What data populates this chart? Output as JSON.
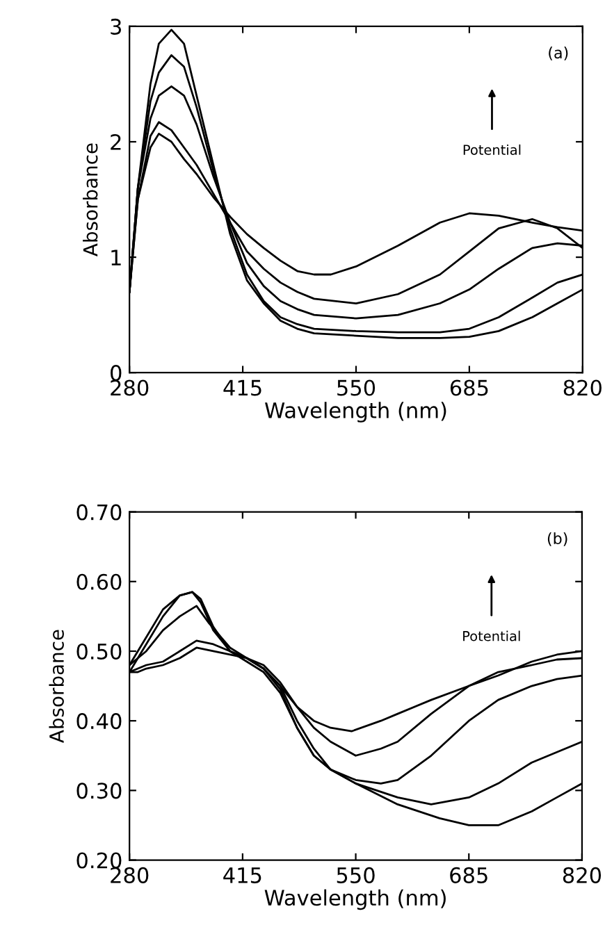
{
  "chart_data": [
    {
      "type": "line",
      "xlabel": "Wavelength (nm)",
      "ylabel": "Absorbance",
      "xlim": [
        280,
        820
      ],
      "ylim": [
        0,
        3
      ],
      "xticks": [
        280,
        415,
        550,
        685,
        820
      ],
      "yticks": [
        0,
        1,
        2,
        3
      ],
      "grid": false,
      "legend": false,
      "annotations": [
        "(a)",
        "Potential"
      ],
      "series": [
        {
          "color": "#000000",
          "x": [
            280,
            290,
            305,
            315,
            330,
            345,
            360,
            380,
            400,
            420,
            440,
            460,
            480,
            500,
            550,
            600,
            650,
            685,
            720,
            760,
            790,
            820
          ],
          "values": [
            0.7,
            1.6,
            2.5,
            2.85,
            2.97,
            2.85,
            2.4,
            1.8,
            1.2,
            0.8,
            0.6,
            0.45,
            0.38,
            0.34,
            0.32,
            0.3,
            0.3,
            0.31,
            0.36,
            0.48,
            0.6,
            0.72
          ]
        },
        {
          "color": "#000000",
          "x": [
            280,
            290,
            305,
            315,
            330,
            345,
            360,
            380,
            400,
            420,
            440,
            460,
            480,
            500,
            550,
            600,
            650,
            685,
            720,
            760,
            790,
            820
          ],
          "values": [
            0.7,
            1.6,
            2.35,
            2.6,
            2.75,
            2.65,
            2.3,
            1.75,
            1.25,
            0.85,
            0.62,
            0.48,
            0.42,
            0.38,
            0.36,
            0.35,
            0.35,
            0.38,
            0.48,
            0.65,
            0.78,
            0.85
          ]
        },
        {
          "color": "#000000",
          "x": [
            280,
            290,
            305,
            315,
            330,
            345,
            360,
            380,
            400,
            420,
            440,
            460,
            480,
            500,
            550,
            600,
            650,
            685,
            720,
            760,
            790,
            820
          ],
          "values": [
            0.7,
            1.6,
            2.2,
            2.4,
            2.48,
            2.4,
            2.15,
            1.7,
            1.3,
            0.95,
            0.75,
            0.62,
            0.55,
            0.5,
            0.47,
            0.5,
            0.6,
            0.72,
            0.9,
            1.08,
            1.12,
            1.1
          ]
        },
        {
          "color": "#000000",
          "x": [
            280,
            290,
            305,
            315,
            330,
            345,
            360,
            380,
            400,
            420,
            440,
            460,
            480,
            500,
            550,
            600,
            650,
            685,
            720,
            760,
            790,
            820
          ],
          "values": [
            0.7,
            1.5,
            2.05,
            2.17,
            2.1,
            1.95,
            1.8,
            1.55,
            1.3,
            1.05,
            0.9,
            0.78,
            0.7,
            0.64,
            0.6,
            0.68,
            0.85,
            1.05,
            1.25,
            1.33,
            1.25,
            1.08
          ]
        },
        {
          "color": "#000000",
          "x": [
            280,
            290,
            305,
            315,
            330,
            345,
            360,
            380,
            400,
            420,
            440,
            460,
            480,
            500,
            520,
            550,
            600,
            650,
            685,
            720,
            760,
            790,
            820
          ],
          "values": [
            0.7,
            1.5,
            1.95,
            2.07,
            2.0,
            1.85,
            1.72,
            1.52,
            1.35,
            1.2,
            1.08,
            0.97,
            0.88,
            0.85,
            0.85,
            0.92,
            1.1,
            1.3,
            1.38,
            1.36,
            1.3,
            1.26,
            1.23
          ]
        }
      ]
    },
    {
      "type": "line",
      "xlabel": "Wavelength (nm)",
      "ylabel": "Absorbance",
      "xlim": [
        280,
        820
      ],
      "ylim": [
        0.2,
        0.7
      ],
      "xticks": [
        280,
        415,
        550,
        685,
        820
      ],
      "yticks": [
        {
          "value": 0.2,
          "label": "0.20"
        },
        {
          "value": 0.3,
          "label": "0.30"
        },
        {
          "value": 0.4,
          "label": "0.40"
        },
        {
          "value": 0.5,
          "label": "0.50"
        },
        {
          "value": 0.6,
          "label": "0.60"
        },
        {
          "value": 0.7,
          "label": "0.70"
        }
      ],
      "grid": false,
      "legend": false,
      "annotations": [
        "(b)",
        "Potential"
      ],
      "series": [
        {
          "color": "#000000",
          "x": [
            280,
            290,
            300,
            320,
            340,
            355,
            365,
            380,
            400,
            420,
            440,
            460,
            480,
            500,
            520,
            550,
            600,
            650,
            685,
            720,
            760,
            790,
            820
          ],
          "values": [
            0.47,
            0.49,
            0.51,
            0.55,
            0.58,
            0.585,
            0.57,
            0.53,
            0.5,
            0.485,
            0.47,
            0.44,
            0.39,
            0.35,
            0.33,
            0.31,
            0.28,
            0.26,
            0.25,
            0.25,
            0.27,
            0.29,
            0.31
          ]
        },
        {
          "color": "#000000",
          "x": [
            280,
            290,
            300,
            320,
            340,
            355,
            365,
            380,
            400,
            420,
            440,
            460,
            480,
            500,
            520,
            550,
            600,
            640,
            685,
            720,
            760,
            790,
            820
          ],
          "values": [
            0.48,
            0.5,
            0.52,
            0.56,
            0.58,
            0.585,
            0.575,
            0.535,
            0.5,
            0.49,
            0.475,
            0.445,
            0.39,
            0.35,
            0.33,
            0.31,
            0.29,
            0.28,
            0.29,
            0.31,
            0.34,
            0.355,
            0.37
          ]
        },
        {
          "color": "#000000",
          "x": [
            280,
            290,
            300,
            320,
            340,
            360,
            375,
            400,
            420,
            440,
            460,
            480,
            500,
            520,
            550,
            580,
            600,
            640,
            685,
            720,
            760,
            790,
            820
          ],
          "values": [
            0.48,
            0.49,
            0.5,
            0.53,
            0.55,
            0.565,
            0.54,
            0.505,
            0.49,
            0.475,
            0.45,
            0.4,
            0.36,
            0.33,
            0.315,
            0.31,
            0.315,
            0.35,
            0.4,
            0.43,
            0.45,
            0.46,
            0.465
          ]
        },
        {
          "color": "#000000",
          "x": [
            280,
            290,
            300,
            320,
            340,
            360,
            380,
            400,
            420,
            440,
            460,
            480,
            500,
            520,
            550,
            580,
            600,
            640,
            685,
            720,
            760,
            790,
            820
          ],
          "values": [
            0.47,
            0.475,
            0.48,
            0.485,
            0.5,
            0.515,
            0.51,
            0.5,
            0.49,
            0.48,
            0.455,
            0.42,
            0.39,
            0.37,
            0.35,
            0.36,
            0.37,
            0.41,
            0.45,
            0.47,
            0.48,
            0.488,
            0.49
          ]
        },
        {
          "color": "#000000",
          "x": [
            280,
            290,
            300,
            320,
            340,
            360,
            380,
            400,
            420,
            440,
            460,
            480,
            500,
            520,
            545,
            580,
            600,
            640,
            685,
            720,
            760,
            790,
            820
          ],
          "values": [
            0.47,
            0.47,
            0.475,
            0.48,
            0.49,
            0.505,
            0.5,
            0.495,
            0.49,
            0.475,
            0.45,
            0.42,
            0.4,
            0.39,
            0.385,
            0.4,
            0.41,
            0.43,
            0.45,
            0.465,
            0.485,
            0.495,
            0.5
          ]
        }
      ]
    }
  ]
}
